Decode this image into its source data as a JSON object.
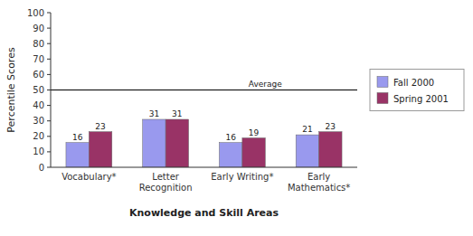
{
  "chart_data": {
    "type": "bar",
    "categories": [
      "Vocabulary*",
      "Letter\nRecognition",
      "Early Writing*",
      "Early\nMathematics*"
    ],
    "series": [
      {
        "name": "Fall 2000",
        "color": "#9999EE",
        "values": [
          16,
          31,
          16,
          21
        ]
      },
      {
        "name": "Spring 2001",
        "color": "#993366",
        "values": [
          23,
          31,
          19,
          23
        ]
      }
    ],
    "annotations": [
      {
        "text": "Average",
        "y": 50
      }
    ],
    "y_label": "Percentile Scores",
    "x_label": "Knowledge and Skill Areas",
    "ylim": [
      0,
      100
    ],
    "yticks": [
      0,
      10,
      20,
      30,
      40,
      50,
      60,
      70,
      80,
      90,
      100
    ],
    "data_labels": true,
    "grid": false,
    "legend": "right"
  }
}
